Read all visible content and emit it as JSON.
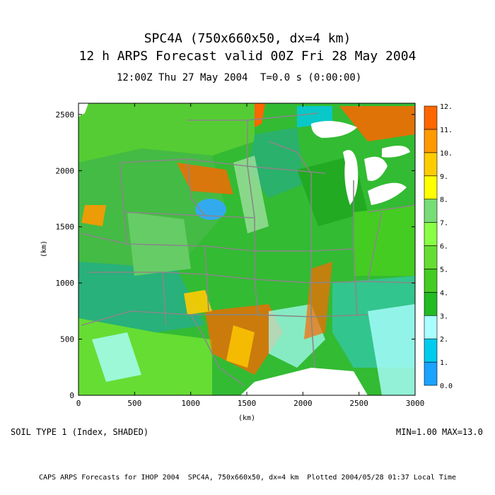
{
  "title": {
    "line1": "SPC4A (750x660x50, dx=4 km)",
    "line2": "12 h ARPS Forecast valid 00Z Fri 28 May 2004"
  },
  "subtitle": {
    "time": "12:00Z Thu 27 May 2004",
    "t": "T=0.0 s (0:00:00)"
  },
  "chart_data": {
    "type": "heatmap",
    "title": "SOIL TYPE 1 (Index, SHADED)",
    "xlabel": "(km)",
    "ylabel": "(km)",
    "xlim": [
      0,
      3000
    ],
    "ylim": [
      0,
      2600
    ],
    "x_ticks": [
      0,
      500,
      1000,
      1500,
      2000,
      2500,
      3000
    ],
    "y_ticks": [
      0,
      500,
      1000,
      1500,
      2000,
      2500
    ],
    "colorbar": {
      "labels": [
        "0.0",
        "1.",
        "2.",
        "3.",
        "4.",
        "5.",
        "6.",
        "7.",
        "8.",
        "9.",
        "10.",
        "11.",
        "12."
      ],
      "colors": [
        "#3399ff",
        "#1aa3ff",
        "#00ccee",
        "#aaffff",
        "#22bb22",
        "#44cc22",
        "#66dd33",
        "#88ff44",
        "#77dd77",
        "#ffff00",
        "#ffcc00",
        "#ff9900",
        "#ff6600"
      ]
    },
    "min": 1.0,
    "max": 13.0
  },
  "minmax_text": "MIN=1.00 MAX=13.0",
  "footer": "CAPS ARPS Forecasts for IHOP 2004  SPC4A, 750x660x50, dx=4 km  Plotted 2004/05/28 01:37 Local Time"
}
